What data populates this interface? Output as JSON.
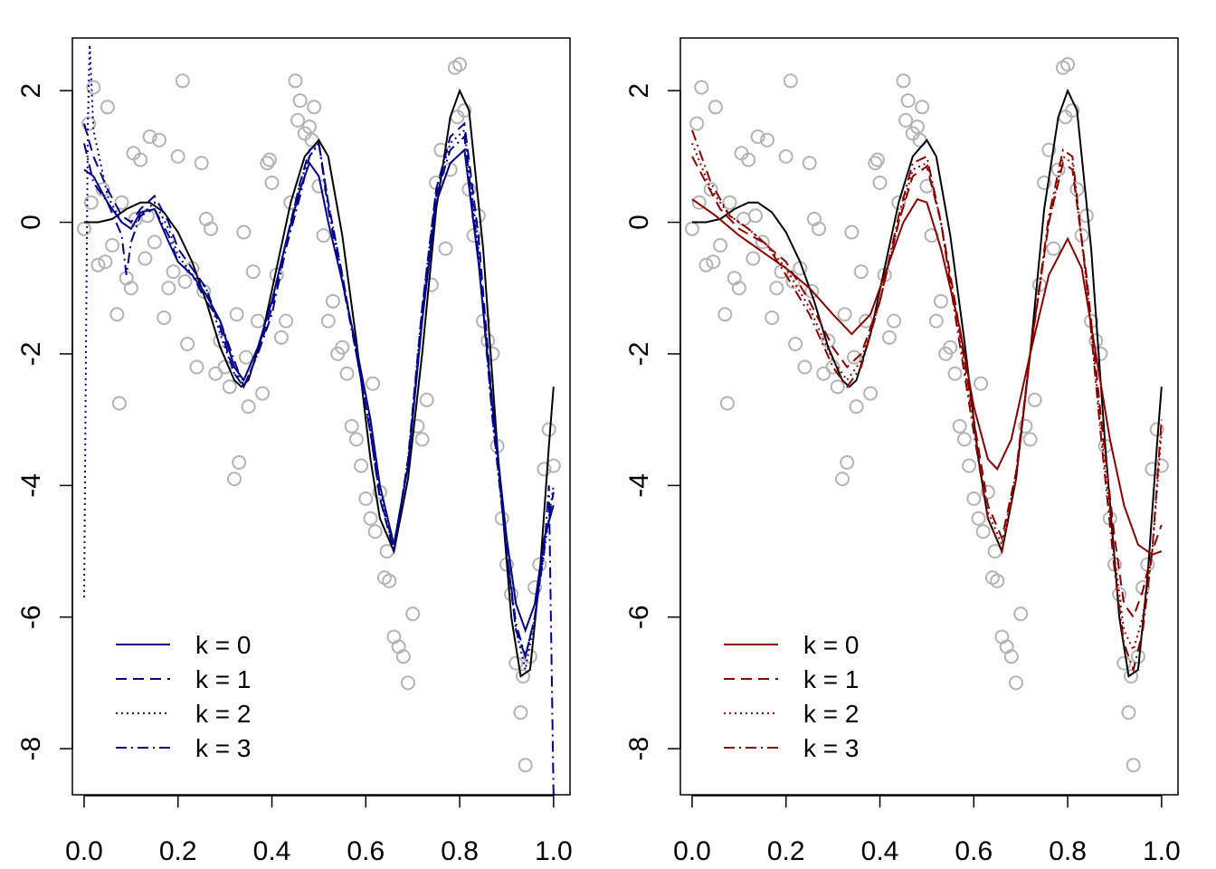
{
  "chart_data": [
    {
      "type": "line",
      "title": "",
      "xlabel": "",
      "ylabel": "",
      "xlim": [
        -0.025,
        1.035
      ],
      "ylim": [
        -8.7,
        2.8
      ],
      "x_ticks": [
        "0.0",
        "0.2",
        "0.4",
        "0.6",
        "0.8",
        "1.0"
      ],
      "y_ticks": [
        "-8",
        "-6",
        "-4",
        "-2",
        "0",
        "2"
      ],
      "x_tick_values": [
        0,
        0.2,
        0.4,
        0.6,
        0.8,
        1.0
      ],
      "y_tick_values": [
        -8,
        -6,
        -4,
        -2,
        0,
        2
      ],
      "legend_position": "bottom-left",
      "point_color": "#b3b3b3",
      "true_curve_color": "#000000",
      "series_color": "#00008b",
      "series": [
        {
          "name": "k = 0",
          "dash": "solid",
          "x": [
            0.0,
            0.02,
            0.05,
            0.08,
            0.1,
            0.12,
            0.15,
            0.18,
            0.2,
            0.23,
            0.26,
            0.29,
            0.32,
            0.34,
            0.37,
            0.4,
            0.43,
            0.46,
            0.48,
            0.5,
            0.52,
            0.55,
            0.58,
            0.61,
            0.63,
            0.66,
            0.69,
            0.72,
            0.75,
            0.78,
            0.81,
            0.84,
            0.87,
            0.9,
            0.92,
            0.94,
            0.96,
            0.98,
            1.0
          ],
          "y": [
            0.8,
            0.7,
            0.3,
            0.0,
            -0.1,
            0.15,
            0.2,
            -0.3,
            -0.6,
            -0.8,
            -1.1,
            -1.5,
            -2.2,
            -2.4,
            -1.9,
            -1.2,
            -0.3,
            0.5,
            0.9,
            0.7,
            0.0,
            -0.9,
            -1.9,
            -3.0,
            -4.0,
            -4.9,
            -3.7,
            -1.5,
            0.3,
            0.9,
            1.1,
            -0.6,
            -2.8,
            -4.8,
            -5.8,
            -6.2,
            -5.8,
            -4.8,
            -4.3
          ]
        },
        {
          "name": "k = 1",
          "dash": "dashed",
          "x": [
            0.0,
            0.02,
            0.05,
            0.08,
            0.1,
            0.12,
            0.15,
            0.18,
            0.2,
            0.23,
            0.26,
            0.29,
            0.32,
            0.34,
            0.37,
            0.4,
            0.43,
            0.46,
            0.48,
            0.5,
            0.52,
            0.55,
            0.58,
            0.61,
            0.63,
            0.66,
            0.69,
            0.72,
            0.75,
            0.78,
            0.81,
            0.84,
            0.87,
            0.9,
            0.92,
            0.94,
            0.96,
            0.98,
            1.0
          ],
          "y": [
            1.5,
            1.0,
            0.5,
            0.1,
            0.0,
            0.2,
            0.4,
            0.0,
            -0.4,
            -0.7,
            -1.0,
            -1.6,
            -2.3,
            -2.5,
            -2.0,
            -1.3,
            -0.3,
            0.6,
            1.1,
            1.2,
            0.3,
            -0.8,
            -2.0,
            -3.2,
            -4.2,
            -5.0,
            -3.6,
            -1.3,
            0.5,
            1.3,
            1.5,
            -0.2,
            -2.8,
            -5.0,
            -6.2,
            -6.6,
            -6.0,
            -4.9,
            -4.1
          ]
        },
        {
          "name": "k = 2",
          "dash": "dotted",
          "x": [
            0.0,
            0.004,
            0.008,
            0.012,
            0.02,
            0.05,
            0.08,
            0.1,
            0.12,
            0.15,
            0.18,
            0.2,
            0.23,
            0.26,
            0.29,
            0.32,
            0.34,
            0.37,
            0.4,
            0.43,
            0.46,
            0.48,
            0.5,
            0.52,
            0.55,
            0.58,
            0.61,
            0.63,
            0.66,
            0.69,
            0.72,
            0.75,
            0.78,
            0.81,
            0.84,
            0.87,
            0.9,
            0.92,
            0.94,
            0.96,
            0.98,
            1.0
          ],
          "y": [
            -5.7,
            -2.0,
            1.5,
            2.7,
            1.4,
            0.4,
            0.0,
            -0.1,
            0.1,
            0.3,
            -0.1,
            -0.5,
            -0.8,
            -1.0,
            -1.7,
            -2.3,
            -2.4,
            -1.9,
            -1.2,
            -0.3,
            0.6,
            1.0,
            1.2,
            0.3,
            -0.8,
            -2.0,
            -3.1,
            -4.1,
            -5.0,
            -3.6,
            -1.3,
            0.5,
            1.2,
            1.4,
            -0.4,
            -3.0,
            -5.0,
            -6.2,
            -6.8,
            -6.0,
            -5.0,
            -4.0
          ]
        },
        {
          "name": "k = 3",
          "dash": "dashdot",
          "x": [
            0.0,
            0.01,
            0.02,
            0.05,
            0.08,
            0.09,
            0.1,
            0.12,
            0.15,
            0.18,
            0.2,
            0.23,
            0.26,
            0.29,
            0.32,
            0.34,
            0.37,
            0.4,
            0.43,
            0.46,
            0.48,
            0.5,
            0.52,
            0.55,
            0.58,
            0.61,
            0.63,
            0.66,
            0.69,
            0.72,
            0.75,
            0.78,
            0.81,
            0.84,
            0.87,
            0.9,
            0.92,
            0.94,
            0.96,
            0.98,
            0.99,
            1.0
          ],
          "y": [
            1.2,
            0.9,
            0.6,
            0.3,
            -0.2,
            -0.8,
            -0.3,
            0.1,
            0.2,
            -0.2,
            -0.6,
            -0.8,
            -1.2,
            -1.5,
            -2.1,
            -2.5,
            -2.0,
            -1.4,
            -0.4,
            0.4,
            1.0,
            1.2,
            0.2,
            -0.9,
            -2.0,
            -3.2,
            -4.2,
            -4.9,
            -3.7,
            -1.4,
            0.4,
            1.1,
            1.3,
            -0.5,
            -3.0,
            -5.0,
            -6.1,
            -6.6,
            -6.0,
            -5.0,
            -4.0,
            -8.7
          ]
        }
      ]
    },
    {
      "type": "line",
      "title": "",
      "xlabel": "",
      "ylabel": "",
      "xlim": [
        -0.025,
        1.035
      ],
      "ylim": [
        -8.7,
        2.8
      ],
      "x_ticks": [
        "0.0",
        "0.2",
        "0.4",
        "0.6",
        "0.8",
        "1.0"
      ],
      "y_ticks": [
        "-8",
        "-6",
        "-4",
        "-2",
        "0",
        "2"
      ],
      "x_tick_values": [
        0,
        0.2,
        0.4,
        0.6,
        0.8,
        1.0
      ],
      "y_tick_values": [
        -8,
        -6,
        -4,
        -2,
        0,
        2
      ],
      "legend_position": "bottom-left",
      "point_color": "#b3b3b3",
      "true_curve_color": "#000000",
      "series_color": "#8b0000",
      "series": [
        {
          "name": "k = 0",
          "dash": "solid",
          "x": [
            0.0,
            0.05,
            0.1,
            0.15,
            0.2,
            0.25,
            0.3,
            0.34,
            0.38,
            0.42,
            0.45,
            0.48,
            0.5,
            0.53,
            0.57,
            0.6,
            0.63,
            0.65,
            0.68,
            0.72,
            0.76,
            0.8,
            0.83,
            0.86,
            0.89,
            0.92,
            0.95,
            0.98,
            1.0
          ],
          "y": [
            0.35,
            0.1,
            -0.2,
            -0.45,
            -0.7,
            -1.0,
            -1.4,
            -1.7,
            -1.4,
            -0.6,
            0.0,
            0.35,
            0.3,
            -0.4,
            -1.6,
            -2.8,
            -3.6,
            -3.75,
            -3.3,
            -2.0,
            -0.8,
            -0.25,
            -0.7,
            -2.0,
            -3.3,
            -4.3,
            -4.9,
            -5.05,
            -5.0
          ]
        },
        {
          "name": "k = 1",
          "dash": "dashed",
          "x": [
            0.0,
            0.03,
            0.06,
            0.1,
            0.15,
            0.2,
            0.25,
            0.3,
            0.33,
            0.36,
            0.4,
            0.44,
            0.47,
            0.5,
            0.53,
            0.56,
            0.6,
            0.63,
            0.66,
            0.69,
            0.72,
            0.76,
            0.79,
            0.81,
            0.84,
            0.87,
            0.9,
            0.92,
            0.94,
            0.96,
            0.98,
            1.0
          ],
          "y": [
            1.0,
            0.6,
            0.2,
            -0.1,
            -0.3,
            -0.6,
            -1.2,
            -1.9,
            -2.2,
            -2.0,
            -1.2,
            0.0,
            0.7,
            0.85,
            0.0,
            -1.2,
            -3.0,
            -4.3,
            -4.8,
            -3.8,
            -2.0,
            0.0,
            0.9,
            0.8,
            -0.8,
            -2.9,
            -4.8,
            -5.8,
            -6.0,
            -5.6,
            -5.0,
            -4.6
          ]
        },
        {
          "name": "k = 2",
          "dash": "dotted",
          "x": [
            0.0,
            0.04,
            0.08,
            0.12,
            0.16,
            0.2,
            0.25,
            0.3,
            0.33,
            0.36,
            0.4,
            0.44,
            0.47,
            0.5,
            0.53,
            0.56,
            0.6,
            0.63,
            0.66,
            0.69,
            0.72,
            0.76,
            0.79,
            0.81,
            0.84,
            0.87,
            0.9,
            0.92,
            0.94,
            0.96,
            0.98,
            1.0
          ],
          "y": [
            1.2,
            0.5,
            0.1,
            -0.1,
            -0.35,
            -0.7,
            -1.3,
            -2.1,
            -2.4,
            -2.1,
            -1.2,
            0.0,
            0.8,
            0.9,
            0.0,
            -1.3,
            -3.1,
            -4.4,
            -4.9,
            -3.8,
            -2.0,
            0.0,
            1.0,
            0.9,
            -0.9,
            -3.1,
            -5.1,
            -6.2,
            -6.5,
            -6.0,
            -5.0,
            -3.2
          ]
        },
        {
          "name": "k = 3",
          "dash": "dashdot",
          "x": [
            0.0,
            0.04,
            0.08,
            0.12,
            0.16,
            0.2,
            0.25,
            0.3,
            0.33,
            0.36,
            0.4,
            0.44,
            0.47,
            0.5,
            0.53,
            0.56,
            0.6,
            0.63,
            0.66,
            0.69,
            0.72,
            0.76,
            0.79,
            0.81,
            0.84,
            0.87,
            0.9,
            0.92,
            0.94,
            0.96,
            0.98,
            1.0
          ],
          "y": [
            1.4,
            0.6,
            0.1,
            -0.1,
            -0.35,
            -0.8,
            -1.4,
            -2.2,
            -2.5,
            -2.2,
            -1.2,
            0.1,
            0.9,
            1.0,
            0.0,
            -1.4,
            -3.2,
            -4.5,
            -5.0,
            -3.9,
            -2.0,
            0.1,
            1.1,
            1.0,
            -0.9,
            -3.2,
            -5.3,
            -6.4,
            -6.8,
            -6.2,
            -5.0,
            -3.0
          ]
        }
      ]
    }
  ],
  "true_curve": {
    "x": [
      0.0,
      0.03,
      0.06,
      0.09,
      0.12,
      0.14,
      0.17,
      0.2,
      0.23,
      0.26,
      0.29,
      0.32,
      0.335,
      0.35,
      0.38,
      0.41,
      0.44,
      0.47,
      0.5,
      0.52,
      0.55,
      0.58,
      0.61,
      0.63,
      0.66,
      0.69,
      0.72,
      0.75,
      0.78,
      0.8,
      0.82,
      0.85,
      0.88,
      0.91,
      0.93,
      0.95,
      0.97,
      0.99,
      1.0
    ],
    "y": [
      0.0,
      0.0,
      0.05,
      0.2,
      0.3,
      0.3,
      0.15,
      -0.15,
      -0.6,
      -1.2,
      -1.9,
      -2.4,
      -2.5,
      -2.4,
      -1.7,
      -0.7,
      0.3,
      1.0,
      1.25,
      1.0,
      -0.2,
      -1.8,
      -3.6,
      -4.5,
      -5.0,
      -3.9,
      -2.0,
      0.2,
      1.6,
      2.0,
      1.7,
      -0.4,
      -3.4,
      -6.0,
      -6.9,
      -6.8,
      -5.4,
      -3.4,
      -2.5
    ]
  },
  "observations": {
    "x": [
      0.0,
      0.01,
      0.015,
      0.02,
      0.03,
      0.04,
      0.05,
      0.06,
      0.07,
      0.075,
      0.08,
      0.09,
      0.1,
      0.105,
      0.11,
      0.12,
      0.13,
      0.14,
      0.15,
      0.16,
      0.17,
      0.18,
      0.19,
      0.2,
      0.21,
      0.215,
      0.22,
      0.23,
      0.24,
      0.25,
      0.26,
      0.27,
      0.28,
      0.29,
      0.3,
      0.31,
      0.32,
      0.33,
      0.34,
      0.345,
      0.35,
      0.36,
      0.37,
      0.38,
      0.39,
      0.4,
      0.41,
      0.42,
      0.43,
      0.44,
      0.45,
      0.455,
      0.46,
      0.47,
      0.48,
      0.49,
      0.5,
      0.51,
      0.52,
      0.53,
      0.54,
      0.55,
      0.56,
      0.57,
      0.58,
      0.59,
      0.6,
      0.61,
      0.62,
      0.63,
      0.64,
      0.65,
      0.66,
      0.67,
      0.68,
      0.69,
      0.7,
      0.71,
      0.72,
      0.73,
      0.74,
      0.75,
      0.76,
      0.77,
      0.78,
      0.79,
      0.8,
      0.81,
      0.82,
      0.83,
      0.84,
      0.85,
      0.86,
      0.87,
      0.88,
      0.89,
      0.9,
      0.91,
      0.92,
      0.93,
      0.94,
      0.95,
      0.96,
      0.97,
      0.98,
      0.99,
      1.0,
      0.045,
      0.135,
      0.255,
      0.325,
      0.395,
      0.485,
      0.615,
      0.645,
      0.795,
      0.935
    ],
    "y": [
      -0.1,
      1.5,
      0.3,
      2.05,
      -0.65,
      0.5,
      1.75,
      -0.35,
      -1.4,
      -2.75,
      0.3,
      -0.85,
      -1.0,
      1.05,
      0.05,
      0.95,
      -0.55,
      1.3,
      -0.3,
      1.25,
      -1.45,
      -1.0,
      -0.75,
      1.0,
      2.15,
      -0.9,
      -1.85,
      -0.7,
      -2.2,
      0.9,
      0.05,
      -0.1,
      -2.3,
      -1.8,
      -2.2,
      -2.5,
      -3.9,
      -3.65,
      -0.15,
      -2.05,
      -2.8,
      -0.75,
      -1.5,
      -2.6,
      0.9,
      0.6,
      -0.8,
      -1.75,
      -1.5,
      0.3,
      2.15,
      1.55,
      1.85,
      1.35,
      1.45,
      1.75,
      0.55,
      -0.2,
      -1.5,
      -1.2,
      -2.0,
      -1.9,
      -2.3,
      -3.1,
      -3.3,
      -3.7,
      -4.2,
      -4.5,
      -4.7,
      -4.1,
      -5.4,
      -5.45,
      -6.3,
      -6.45,
      -6.6,
      -7.0,
      -5.95,
      -3.1,
      -3.3,
      -2.7,
      -0.95,
      0.6,
      1.1,
      -0.4,
      0.8,
      2.35,
      2.4,
      1.7,
      0.5,
      -0.2,
      0.1,
      -1.5,
      -1.8,
      -2.0,
      -3.4,
      -4.5,
      -5.2,
      -5.65,
      -6.7,
      -7.45,
      -8.25,
      -6.6,
      -5.55,
      -5.2,
      -3.75,
      -3.15,
      -3.7,
      -0.6,
      0.1,
      -1.05,
      -1.4,
      0.95,
      1.25,
      -2.45,
      -5.0,
      1.6,
      -6.9
    ]
  }
}
